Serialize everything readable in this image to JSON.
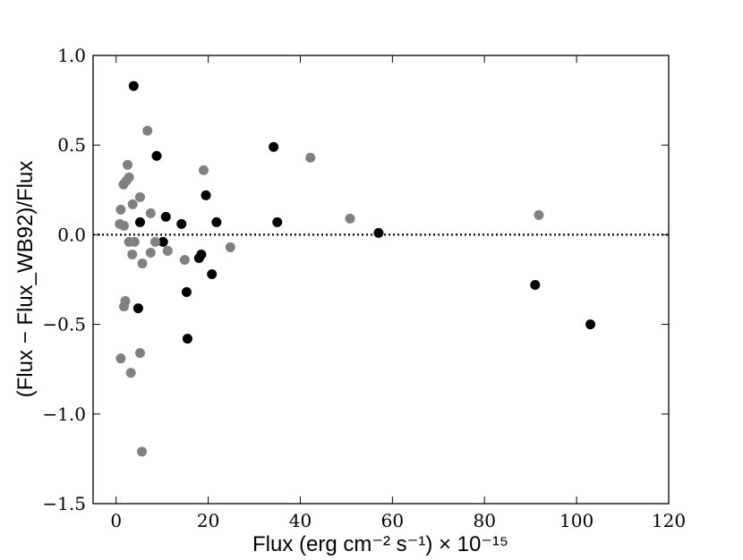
{
  "chart_data": {
    "type": "scatter",
    "title": "",
    "xlabel": "Flux (erg cm⁻² s⁻¹) × 10⁻¹⁵",
    "ylabel": "(Flux − Flux_WB92)/Flux",
    "xlim": [
      -5,
      120
    ],
    "ylim": [
      -1.5,
      1.0
    ],
    "xticks": [
      0,
      20,
      40,
      60,
      80,
      100,
      120
    ],
    "yticks": [
      -1.5,
      -1.0,
      -0.5,
      0.0,
      0.5,
      1.0
    ],
    "xtick_labels": [
      "0",
      "20",
      "40",
      "60",
      "80",
      "100",
      "120"
    ],
    "ytick_labels": [
      "−1.5",
      "−1.0",
      "−0.5",
      "0.0",
      "0.5",
      "1.0"
    ],
    "grid": false,
    "reference_line": {
      "y": 0,
      "style": "dotted",
      "color": "#000000"
    },
    "series": [
      {
        "color": "#000000",
        "points": [
          [
            3.8,
            0.83
          ],
          [
            34.2,
            0.49
          ],
          [
            8.8,
            0.44
          ],
          [
            19.5,
            0.22
          ],
          [
            10.8,
            0.1
          ],
          [
            5.2,
            0.07
          ],
          [
            14.2,
            0.06
          ],
          [
            21.8,
            0.07
          ],
          [
            35.0,
            0.07
          ],
          [
            57.0,
            0.01
          ],
          [
            10.2,
            -0.04
          ],
          [
            18.5,
            -0.11
          ],
          [
            18.0,
            -0.13
          ],
          [
            20.8,
            -0.22
          ],
          [
            15.3,
            -0.32
          ],
          [
            4.8,
            -0.41
          ],
          [
            15.5,
            -0.58
          ],
          [
            91.0,
            -0.28
          ],
          [
            103.0,
            -0.5
          ]
        ]
      },
      {
        "color": "#808080",
        "points": [
          [
            6.8,
            0.58
          ],
          [
            42.2,
            0.43
          ],
          [
            2.5,
            0.39
          ],
          [
            19.0,
            0.36
          ],
          [
            2.8,
            0.32
          ],
          [
            2.2,
            0.3
          ],
          [
            1.6,
            0.28
          ],
          [
            5.2,
            0.21
          ],
          [
            3.6,
            0.17
          ],
          [
            1.0,
            0.14
          ],
          [
            7.5,
            0.12
          ],
          [
            50.8,
            0.09
          ],
          [
            91.8,
            0.11
          ],
          [
            0.8,
            0.06
          ],
          [
            1.7,
            0.05
          ],
          [
            2.8,
            -0.04
          ],
          [
            4.0,
            -0.04
          ],
          [
            8.5,
            -0.04
          ],
          [
            3.5,
            -0.11
          ],
          [
            7.5,
            -0.1
          ],
          [
            11.2,
            -0.09
          ],
          [
            24.8,
            -0.07
          ],
          [
            14.9,
            -0.14
          ],
          [
            5.7,
            -0.16
          ],
          [
            2.0,
            -0.37
          ],
          [
            1.7,
            -0.4
          ],
          [
            5.2,
            -0.66
          ],
          [
            1.0,
            -0.69
          ],
          [
            3.2,
            -0.77
          ],
          [
            5.6,
            -1.21
          ]
        ]
      }
    ]
  }
}
